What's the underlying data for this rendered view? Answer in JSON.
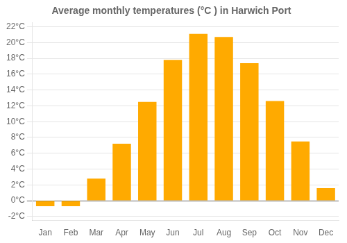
{
  "chart_data": {
    "type": "bar",
    "title": "Average monthly temperatures (°C ) in Harwich Port",
    "categories": [
      "Jan",
      "Feb",
      "Mar",
      "Apr",
      "May",
      "Jun",
      "Jul",
      "Aug",
      "Sep",
      "Oct",
      "Nov",
      "Dec"
    ],
    "values": [
      -0.7,
      -0.7,
      2.8,
      7.2,
      12.5,
      17.8,
      21.1,
      20.7,
      17.4,
      12.6,
      7.5,
      1.6
    ],
    "color": "#FFAA00",
    "ylim": [
      -2.5,
      22.5
    ],
    "yticks": [
      {
        "value": -2,
        "label": "-2°C"
      },
      {
        "value": 0,
        "label": "0°C"
      },
      {
        "value": 2,
        "label": "2°C"
      },
      {
        "value": 4,
        "label": "4°C"
      },
      {
        "value": 6,
        "label": "6°C"
      },
      {
        "value": 8,
        "label": "8°C"
      },
      {
        "value": 10,
        "label": "10°C"
      },
      {
        "value": 12,
        "label": "12°C"
      },
      {
        "value": 14,
        "label": "14°C"
      },
      {
        "value": 16,
        "label": "16°C"
      },
      {
        "value": 18,
        "label": "18°C"
      },
      {
        "value": 20,
        "label": "20°C"
      },
      {
        "value": 22,
        "label": "22°C"
      }
    ],
    "grid": true
  }
}
